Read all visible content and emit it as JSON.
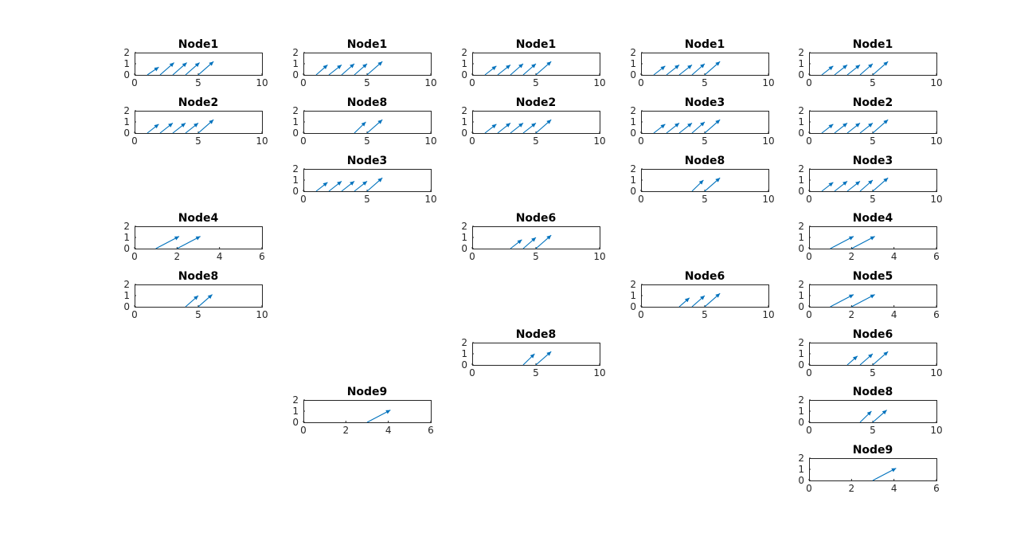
{
  "figure": {
    "background": "#ffffff",
    "arrow_color": "#0072bd",
    "axis_color": "#262626"
  },
  "chart_data": [
    {
      "type": "quiver",
      "title": "Node1",
      "column": 1,
      "row": 1,
      "xlim": [
        0,
        10
      ],
      "xticks": [
        0,
        5,
        10
      ],
      "ylim": [
        0,
        2
      ],
      "yticks": [
        0,
        1,
        2
      ],
      "arrows": [
        [
          1,
          0,
          0.9,
          0.7
        ],
        [
          2,
          0,
          1.1,
          1.1
        ],
        [
          3,
          0,
          1.1,
          1.1
        ],
        [
          4,
          0,
          1.1,
          1.1
        ],
        [
          5,
          0,
          1.2,
          1.2
        ]
      ]
    },
    {
      "type": "quiver",
      "title": "Node2",
      "column": 1,
      "row": 2,
      "xlim": [
        0,
        10
      ],
      "xticks": [
        0,
        5,
        10
      ],
      "ylim": [
        0,
        2
      ],
      "yticks": [
        0,
        1,
        2
      ],
      "arrows": [
        [
          1,
          0,
          0.9,
          0.8
        ],
        [
          2,
          0,
          1.0,
          0.9
        ],
        [
          3,
          0,
          1.0,
          0.9
        ],
        [
          4,
          0,
          1.0,
          0.9
        ],
        [
          5,
          0,
          1.2,
          1.2
        ]
      ]
    },
    {
      "type": "quiver",
      "title": "Node4",
      "column": 1,
      "row": 4,
      "xlim": [
        0,
        6
      ],
      "xticks": [
        0,
        2,
        4,
        6
      ],
      "ylim": [
        0,
        2
      ],
      "yticks": [
        0,
        1,
        2
      ],
      "arrows": [
        [
          1,
          0,
          1.1,
          1.1
        ],
        [
          2,
          0,
          1.1,
          1.1
        ]
      ]
    },
    {
      "type": "quiver",
      "title": "Node8",
      "column": 1,
      "row": 5,
      "xlim": [
        0,
        10
      ],
      "xticks": [
        0,
        5,
        10
      ],
      "ylim": [
        0,
        2
      ],
      "yticks": [
        0,
        1,
        2
      ],
      "arrows": [
        [
          4,
          0,
          1.0,
          1.0
        ],
        [
          5,
          0,
          1.1,
          1.1
        ]
      ]
    },
    {
      "type": "quiver",
      "title": "Node1",
      "column": 2,
      "row": 1,
      "xlim": [
        0,
        10
      ],
      "xticks": [
        0,
        5,
        10
      ],
      "ylim": [
        0,
        2
      ],
      "yticks": [
        0,
        1,
        2
      ],
      "arrows": [
        [
          1,
          0,
          0.9,
          0.9
        ],
        [
          2,
          0,
          1.0,
          0.9
        ],
        [
          3,
          0,
          1.0,
          1.0
        ],
        [
          4,
          0,
          1.0,
          1.0
        ],
        [
          5,
          0,
          1.2,
          1.2
        ]
      ]
    },
    {
      "type": "quiver",
      "title": "Node8",
      "column": 2,
      "row": 2,
      "xlim": [
        0,
        10
      ],
      "xticks": [
        0,
        5,
        10
      ],
      "ylim": [
        0,
        2
      ],
      "yticks": [
        0,
        1,
        2
      ],
      "arrows": [
        [
          4,
          0,
          0.9,
          1.0
        ],
        [
          5,
          0,
          1.2,
          1.2
        ]
      ]
    },
    {
      "type": "quiver",
      "title": "Node3",
      "column": 2,
      "row": 3,
      "xlim": [
        0,
        10
      ],
      "xticks": [
        0,
        5,
        10
      ],
      "ylim": [
        0,
        2
      ],
      "yticks": [
        0,
        1,
        2
      ],
      "arrows": [
        [
          1,
          0,
          0.9,
          0.8
        ],
        [
          2,
          0,
          1.0,
          0.9
        ],
        [
          3,
          0,
          1.0,
          0.9
        ],
        [
          4,
          0,
          1.0,
          0.9
        ],
        [
          5,
          0,
          1.2,
          1.2
        ]
      ]
    },
    {
      "type": "quiver",
      "title": "Node9",
      "column": 2,
      "row": 7,
      "xlim": [
        0,
        6
      ],
      "xticks": [
        0,
        2,
        4,
        6
      ],
      "ylim": [
        0,
        2
      ],
      "yticks": [
        0,
        1,
        2
      ],
      "arrows": [
        [
          3,
          0,
          1.1,
          1.1
        ]
      ]
    },
    {
      "type": "quiver",
      "title": "Node1",
      "column": 3,
      "row": 1,
      "xlim": [
        0,
        10
      ],
      "xticks": [
        0,
        5,
        10
      ],
      "ylim": [
        0,
        2
      ],
      "yticks": [
        0,
        1,
        2
      ],
      "arrows": [
        [
          1,
          0,
          0.9,
          0.8
        ],
        [
          2,
          0,
          1.0,
          0.9
        ],
        [
          3,
          0,
          1.0,
          1.0
        ],
        [
          4,
          0,
          1.0,
          1.0
        ],
        [
          5,
          0,
          1.2,
          1.2
        ]
      ]
    },
    {
      "type": "quiver",
      "title": "Node2",
      "column": 3,
      "row": 2,
      "xlim": [
        0,
        10
      ],
      "xticks": [
        0,
        5,
        10
      ],
      "ylim": [
        0,
        2
      ],
      "yticks": [
        0,
        1,
        2
      ],
      "arrows": [
        [
          1,
          0,
          0.9,
          0.8
        ],
        [
          2,
          0,
          1.0,
          0.9
        ],
        [
          3,
          0,
          1.0,
          0.9
        ],
        [
          4,
          0,
          1.0,
          0.9
        ],
        [
          5,
          0,
          1.2,
          1.2
        ]
      ]
    },
    {
      "type": "quiver",
      "title": "Node6",
      "column": 3,
      "row": 4,
      "xlim": [
        0,
        10
      ],
      "xticks": [
        0,
        5,
        10
      ],
      "ylim": [
        0,
        2
      ],
      "yticks": [
        0,
        1,
        2
      ],
      "arrows": [
        [
          3,
          0,
          0.9,
          0.8
        ],
        [
          4,
          0,
          1.0,
          1.0
        ],
        [
          5,
          0,
          1.2,
          1.2
        ]
      ]
    },
    {
      "type": "quiver",
      "title": "Node8",
      "column": 3,
      "row": 6,
      "xlim": [
        0,
        10
      ],
      "xticks": [
        0,
        5,
        10
      ],
      "ylim": [
        0,
        2
      ],
      "yticks": [
        0,
        1,
        2
      ],
      "arrows": [
        [
          4,
          0,
          0.9,
          1.0
        ],
        [
          5,
          0,
          1.2,
          1.2
        ]
      ]
    },
    {
      "type": "quiver",
      "title": "Node1",
      "column": 4,
      "row": 1,
      "xlim": [
        0,
        10
      ],
      "xticks": [
        0,
        5,
        10
      ],
      "ylim": [
        0,
        2
      ],
      "yticks": [
        0,
        1,
        2
      ],
      "arrows": [
        [
          1,
          0,
          0.9,
          0.8
        ],
        [
          2,
          0,
          1.0,
          0.9
        ],
        [
          3,
          0,
          1.0,
          0.9
        ],
        [
          4,
          0,
          1.0,
          1.0
        ],
        [
          5,
          0,
          1.2,
          1.2
        ]
      ]
    },
    {
      "type": "quiver",
      "title": "Node3",
      "column": 4,
      "row": 2,
      "xlim": [
        0,
        10
      ],
      "xticks": [
        0,
        5,
        10
      ],
      "ylim": [
        0,
        2
      ],
      "yticks": [
        0,
        1,
        2
      ],
      "arrows": [
        [
          1,
          0,
          0.9,
          0.8
        ],
        [
          2,
          0,
          1.0,
          0.9
        ],
        [
          3,
          0,
          1.0,
          0.9
        ],
        [
          4,
          0,
          1.0,
          1.0
        ],
        [
          5,
          0,
          1.2,
          1.2
        ]
      ]
    },
    {
      "type": "quiver",
      "title": "Node8",
      "column": 4,
      "row": 3,
      "xlim": [
        0,
        10
      ],
      "xticks": [
        0,
        5,
        10
      ],
      "ylim": [
        0,
        2
      ],
      "yticks": [
        0,
        1,
        2
      ],
      "arrows": [
        [
          4,
          0,
          0.9,
          1.0
        ],
        [
          5,
          0,
          1.2,
          1.2
        ]
      ]
    },
    {
      "type": "quiver",
      "title": "Node6",
      "column": 4,
      "row": 5,
      "xlim": [
        0,
        10
      ],
      "xticks": [
        0,
        5,
        10
      ],
      "ylim": [
        0,
        2
      ],
      "yticks": [
        0,
        1,
        2
      ],
      "arrows": [
        [
          3,
          0,
          0.8,
          0.8
        ],
        [
          4,
          0,
          1.0,
          1.0
        ],
        [
          5,
          0,
          1.2,
          1.2
        ]
      ]
    },
    {
      "type": "quiver",
      "title": "Node1",
      "column": 5,
      "row": 1,
      "xlim": [
        0,
        10
      ],
      "xticks": [
        0,
        5,
        10
      ],
      "ylim": [
        0,
        2
      ],
      "yticks": [
        0,
        1,
        2
      ],
      "arrows": [
        [
          1,
          0,
          0.9,
          0.8
        ],
        [
          2,
          0,
          1.0,
          0.9
        ],
        [
          3,
          0,
          1.0,
          0.9
        ],
        [
          4,
          0,
          1.0,
          1.0
        ],
        [
          5,
          0,
          1.2,
          1.2
        ]
      ]
    },
    {
      "type": "quiver",
      "title": "Node2",
      "column": 5,
      "row": 2,
      "xlim": [
        0,
        10
      ],
      "xticks": [
        0,
        5,
        10
      ],
      "ylim": [
        0,
        2
      ],
      "yticks": [
        0,
        1,
        2
      ],
      "arrows": [
        [
          1,
          0,
          0.9,
          0.8
        ],
        [
          2,
          0,
          1.0,
          0.9
        ],
        [
          3,
          0,
          1.0,
          0.9
        ],
        [
          4,
          0,
          1.0,
          0.9
        ],
        [
          5,
          0,
          1.2,
          1.2
        ]
      ]
    },
    {
      "type": "quiver",
      "title": "Node3",
      "column": 5,
      "row": 3,
      "xlim": [
        0,
        10
      ],
      "xticks": [
        0,
        5,
        10
      ],
      "ylim": [
        0,
        2
      ],
      "yticks": [
        0,
        1,
        2
      ],
      "arrows": [
        [
          1,
          0,
          0.9,
          0.8
        ],
        [
          2,
          0,
          1.0,
          0.9
        ],
        [
          3,
          0,
          1.0,
          0.9
        ],
        [
          4,
          0,
          1.0,
          1.0
        ],
        [
          5,
          0,
          1.2,
          1.2
        ]
      ]
    },
    {
      "type": "quiver",
      "title": "Node4",
      "column": 5,
      "row": 4,
      "xlim": [
        0,
        6
      ],
      "xticks": [
        0,
        2,
        4,
        6
      ],
      "ylim": [
        0,
        2
      ],
      "yticks": [
        0,
        1,
        2
      ],
      "arrows": [
        [
          1,
          0,
          1.1,
          1.1
        ],
        [
          2,
          0,
          1.1,
          1.1
        ]
      ]
    },
    {
      "type": "quiver",
      "title": "Node5",
      "column": 5,
      "row": 5,
      "xlim": [
        0,
        6
      ],
      "xticks": [
        0,
        2,
        4,
        6
      ],
      "ylim": [
        0,
        2
      ],
      "yticks": [
        0,
        1,
        2
      ],
      "arrows": [
        [
          1,
          0,
          1.1,
          1.1
        ],
        [
          2,
          0,
          1.1,
          1.1
        ]
      ]
    },
    {
      "type": "quiver",
      "title": "Node6",
      "column": 5,
      "row": 6,
      "xlim": [
        0,
        10
      ],
      "xticks": [
        0,
        5,
        10
      ],
      "ylim": [
        0,
        2
      ],
      "yticks": [
        0,
        1,
        2
      ],
      "arrows": [
        [
          3,
          0,
          0.8,
          0.8
        ],
        [
          4,
          0,
          1.0,
          1.0
        ],
        [
          5,
          0,
          1.2,
          1.2
        ]
      ]
    },
    {
      "type": "quiver",
      "title": "Node8",
      "column": 5,
      "row": 7,
      "xlim": [
        0,
        10
      ],
      "xticks": [
        0,
        5,
        10
      ],
      "ylim": [
        0,
        2
      ],
      "yticks": [
        0,
        1,
        2
      ],
      "arrows": [
        [
          4,
          0,
          0.9,
          1.0
        ],
        [
          5,
          0,
          1.1,
          1.1
        ]
      ]
    },
    {
      "type": "quiver",
      "title": "Node9",
      "column": 5,
      "row": 8,
      "xlim": [
        0,
        6
      ],
      "xticks": [
        0,
        2,
        4,
        6
      ],
      "ylim": [
        0,
        2
      ],
      "yticks": [
        0,
        1,
        2
      ],
      "arrows": [
        [
          3,
          0,
          1.1,
          1.1
        ]
      ]
    }
  ]
}
